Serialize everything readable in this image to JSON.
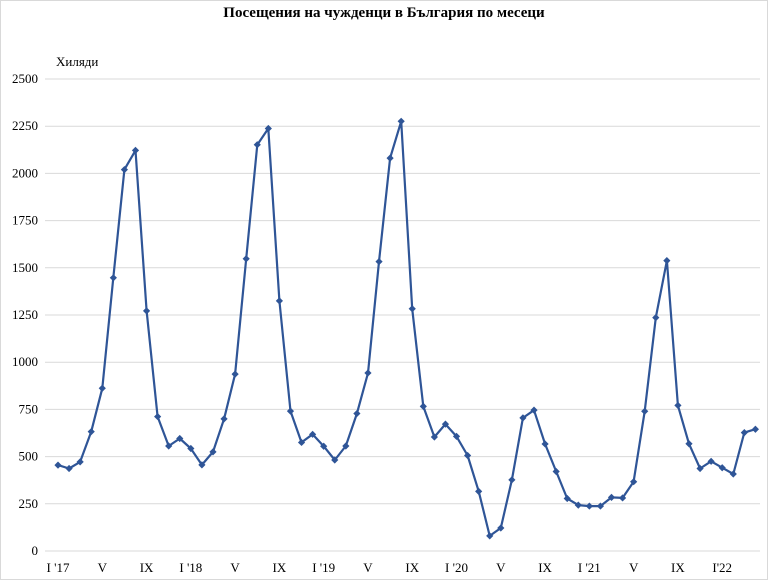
{
  "chart_data": {
    "type": "line",
    "title": "Посещения на чужденци в България по месеци",
    "ylabel": "Хиляди",
    "xlabel": "",
    "ylim": [
      0,
      2500
    ],
    "yticks": [
      "0",
      "250",
      "500",
      "750",
      "1000",
      "1250",
      "1500",
      "1750",
      "2000",
      "2250",
      "2500"
    ],
    "xticks": [
      {
        "index": 0,
        "label": "I '17"
      },
      {
        "index": 4,
        "label": "V"
      },
      {
        "index": 8,
        "label": "IX"
      },
      {
        "index": 12,
        "label": "I '18"
      },
      {
        "index": 16,
        "label": "V"
      },
      {
        "index": 20,
        "label": "IX"
      },
      {
        "index": 24,
        "label": "I '19"
      },
      {
        "index": 28,
        "label": "V"
      },
      {
        "index": 32,
        "label": "IX"
      },
      {
        "index": 36,
        "label": "I '20"
      },
      {
        "index": 40,
        "label": "V"
      },
      {
        "index": 44,
        "label": "IX"
      },
      {
        "index": 48,
        "label": "I '21"
      },
      {
        "index": 52,
        "label": "V"
      },
      {
        "index": 56,
        "label": "IX"
      },
      {
        "index": 60,
        "label": "I'22"
      }
    ],
    "grid": true,
    "color": "#2f5597",
    "series": [
      {
        "values": [
          455,
          437,
          472,
          632,
          862,
          1447,
          2020,
          2122,
          1272,
          712,
          556,
          596,
          543,
          456,
          525,
          700,
          937,
          1548,
          2152,
          2238,
          1325,
          741,
          575,
          618,
          555,
          482,
          556,
          728,
          943,
          1533,
          2081,
          2276,
          1283,
          766,
          604,
          672,
          607,
          506,
          316,
          80,
          122,
          377,
          705,
          746,
          567,
          421,
          278,
          243,
          238,
          238,
          284,
          281,
          367,
          740,
          1236,
          1538,
          771,
          568,
          437,
          475,
          441,
          408,
          627,
          645
        ]
      }
    ]
  }
}
